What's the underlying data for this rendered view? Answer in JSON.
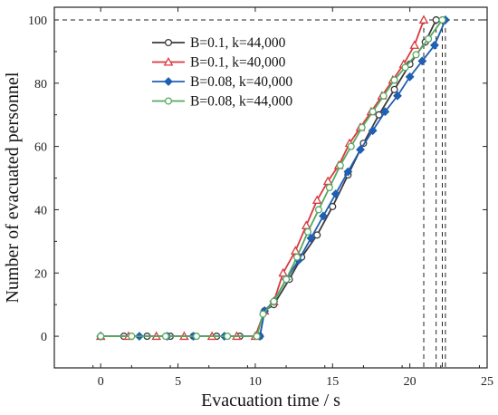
{
  "chart_data": {
    "type": "line",
    "xlabel": "Evacuation time / s",
    "ylabel": "Number of evacuated personnel",
    "xlim": [
      -3,
      25
    ],
    "ylim": [
      -10,
      104
    ],
    "xticks": [
      0,
      5,
      10,
      15,
      20,
      25
    ],
    "yticks": [
      0,
      20,
      40,
      60,
      80,
      100
    ],
    "grid": false,
    "legend_position": "top-left",
    "reference_lines": {
      "horizontal_y": 100,
      "vertical_x": [
        20.9,
        21.7,
        22.1,
        22.3
      ]
    },
    "series": [
      {
        "name": "B=0.1, k=44,000",
        "color": "#3a3a3a",
        "marker": "circle",
        "filled": false,
        "points": [
          [
            0,
            0
          ],
          [
            1.5,
            0
          ],
          [
            3,
            0
          ],
          [
            4.5,
            0
          ],
          [
            6,
            0
          ],
          [
            7.5,
            0
          ],
          [
            9,
            0
          ],
          [
            10.3,
            0
          ],
          [
            10.6,
            8
          ],
          [
            11.2,
            10
          ],
          [
            12.2,
            18
          ],
          [
            13,
            25
          ],
          [
            14,
            32
          ],
          [
            15,
            41
          ],
          [
            16,
            51
          ],
          [
            17,
            61
          ],
          [
            18,
            70
          ],
          [
            19,
            78
          ],
          [
            20,
            86
          ],
          [
            21,
            93
          ],
          [
            21.7,
            100
          ]
        ]
      },
      {
        "name": "B=0.1, k=40,000",
        "color": "#d9393e",
        "marker": "triangle",
        "filled": false,
        "points": [
          [
            0,
            0
          ],
          [
            1.8,
            0
          ],
          [
            3.6,
            0
          ],
          [
            5.4,
            0
          ],
          [
            7.2,
            0
          ],
          [
            8.8,
            0
          ],
          [
            10,
            0
          ],
          [
            10.6,
            8
          ],
          [
            11.2,
            11
          ],
          [
            11.8,
            20
          ],
          [
            12.6,
            27
          ],
          [
            13.3,
            35
          ],
          [
            14,
            43
          ],
          [
            14.7,
            49
          ],
          [
            15.4,
            54
          ],
          [
            16.1,
            61
          ],
          [
            16.8,
            66
          ],
          [
            17.5,
            71
          ],
          [
            18.2,
            76
          ],
          [
            18.9,
            81
          ],
          [
            19.6,
            86
          ],
          [
            20.3,
            92
          ],
          [
            20.9,
            100
          ]
        ]
      },
      {
        "name": "B=0.08, k=40,000",
        "color": "#1f5fb4",
        "marker": "diamond",
        "filled": true,
        "points": [
          [
            0,
            0
          ],
          [
            2.5,
            0
          ],
          [
            4.3,
            0
          ],
          [
            6,
            0
          ],
          [
            8,
            0
          ],
          [
            10.3,
            0
          ],
          [
            10.6,
            8
          ],
          [
            11.2,
            11
          ],
          [
            12,
            18
          ],
          [
            12.8,
            24
          ],
          [
            13.6,
            31
          ],
          [
            14.4,
            38
          ],
          [
            15.2,
            45
          ],
          [
            16,
            52
          ],
          [
            16.8,
            59
          ],
          [
            17.6,
            65
          ],
          [
            18.4,
            71
          ],
          [
            19.2,
            76
          ],
          [
            20,
            82
          ],
          [
            20.8,
            87
          ],
          [
            21.6,
            92
          ],
          [
            22.3,
            100
          ]
        ]
      },
      {
        "name": "B=0.08, k=44,000",
        "color": "#57a860",
        "marker": "circle",
        "filled": false,
        "points": [
          [
            0,
            0
          ],
          [
            2,
            0
          ],
          [
            4.2,
            0
          ],
          [
            6.2,
            0
          ],
          [
            8.2,
            0
          ],
          [
            10.1,
            0
          ],
          [
            10.5,
            7
          ],
          [
            11.2,
            11
          ],
          [
            12,
            18
          ],
          [
            12.7,
            25
          ],
          [
            13.4,
            33
          ],
          [
            14.1,
            40
          ],
          [
            14.8,
            47
          ],
          [
            15.5,
            54
          ],
          [
            16.2,
            60
          ],
          [
            16.9,
            66
          ],
          [
            17.6,
            71
          ],
          [
            18.3,
            76
          ],
          [
            19,
            81
          ],
          [
            19.7,
            85
          ],
          [
            20.4,
            89
          ],
          [
            21.2,
            94
          ],
          [
            22.1,
            100
          ]
        ]
      }
    ]
  }
}
